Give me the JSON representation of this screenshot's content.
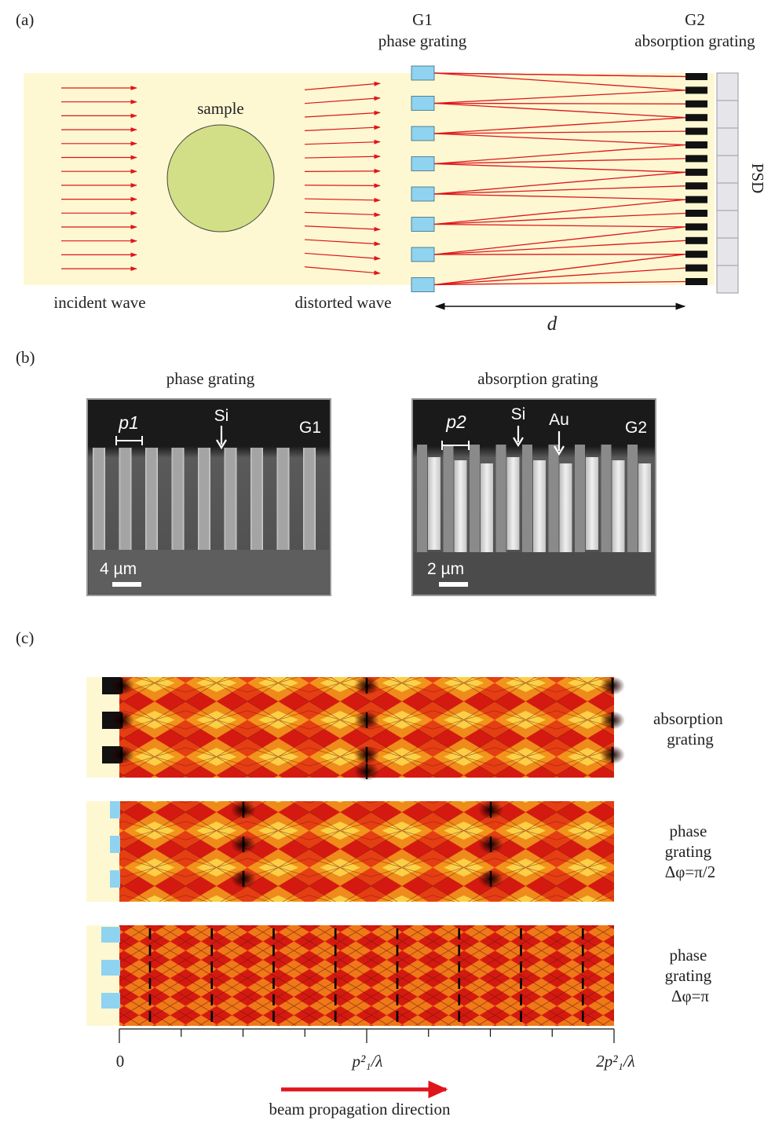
{
  "panel_a": {
    "label": "(a)",
    "g1_title": "G1",
    "g1_subtitle": "phase grating",
    "g2_title": "G2",
    "g2_subtitle": "absorption grating",
    "sample_label": "sample",
    "detector_label": "PSD",
    "incident_label": "incident wave",
    "distorted_label": "distorted wave",
    "distance_label": "d",
    "colors": {
      "background": "#fdf8d2",
      "ray": "#e0141b",
      "sample": "#d2df86",
      "phase_block": "#8fd3f0",
      "absorber": "#111111",
      "detector": "#e6e6ea"
    }
  },
  "panel_b": {
    "label": "(b)",
    "left": {
      "title": "phase grating",
      "period": "p1",
      "material": "Si",
      "grating": "G1",
      "scale": "4 µm"
    },
    "right": {
      "title": "absorption grating",
      "period": "p2",
      "material": "Si",
      "fill_material": "Au",
      "grating": "G2",
      "scale": "2 µm"
    }
  },
  "panel_c": {
    "label": "(c)",
    "rows": [
      {
        "lines": [
          "absorption",
          "grating"
        ]
      },
      {
        "lines": [
          "phase",
          "grating",
          "Δφ=π/2"
        ]
      },
      {
        "lines": [
          "phase",
          "grating",
          "Δφ=π"
        ]
      }
    ],
    "axis": {
      "tick_0": "0",
      "tick_1": "p²₁/λ",
      "tick_2": "2p²₁/λ"
    },
    "direction_label": "beam propagation direction"
  }
}
